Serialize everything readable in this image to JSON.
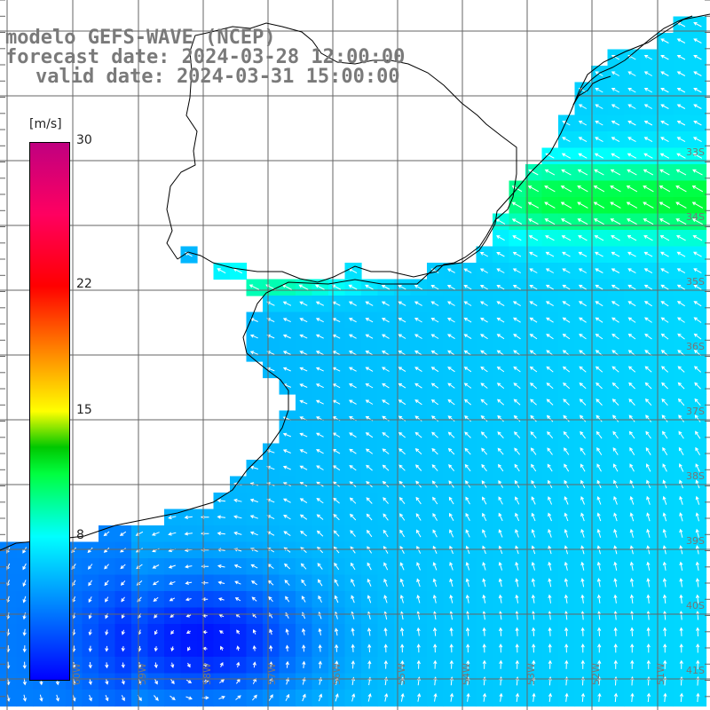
{
  "title": {
    "line1": "modelo GEFS-WAVE (NCEP)",
    "line2": "forecast date: 2024-03-28 12:00:00",
    "line3": "valid date: 2024-03-31 15:00:00"
  },
  "colorbar": {
    "unit": "[m/s]",
    "ticks": [
      "30",
      "22",
      "15",
      "8"
    ],
    "tick_values": [
      30,
      22,
      15,
      8
    ],
    "min": 0,
    "max": 30,
    "stops": [
      {
        "value": 0,
        "color": "#0000ff"
      },
      {
        "value": 4,
        "color": "#0080ff"
      },
      {
        "value": 8,
        "color": "#00ffff"
      },
      {
        "value": 11.5,
        "color": "#00ff40"
      },
      {
        "value": 13,
        "color": "#00c800"
      },
      {
        "value": 15,
        "color": "#ffff00"
      },
      {
        "value": 18.5,
        "color": "#ff8000"
      },
      {
        "value": 22,
        "color": "#ff0000"
      },
      {
        "value": 26,
        "color": "#ff0060"
      },
      {
        "value": 30,
        "color": "#c00080"
      }
    ]
  },
  "map": {
    "lat_labels": [
      "33S",
      "34S",
      "35S",
      "36S",
      "37S",
      "38S",
      "39S",
      "40S",
      "41S"
    ],
    "lon_labels": [
      "60W",
      "59W",
      "58W",
      "57W",
      "56W",
      "55W",
      "54W",
      "53W",
      "52W",
      "51W"
    ],
    "field": "wind speed (m/s) with wind direction arrows",
    "land_color": "#ffffff",
    "grid_color": "#666666",
    "coast_color": "#000000"
  }
}
